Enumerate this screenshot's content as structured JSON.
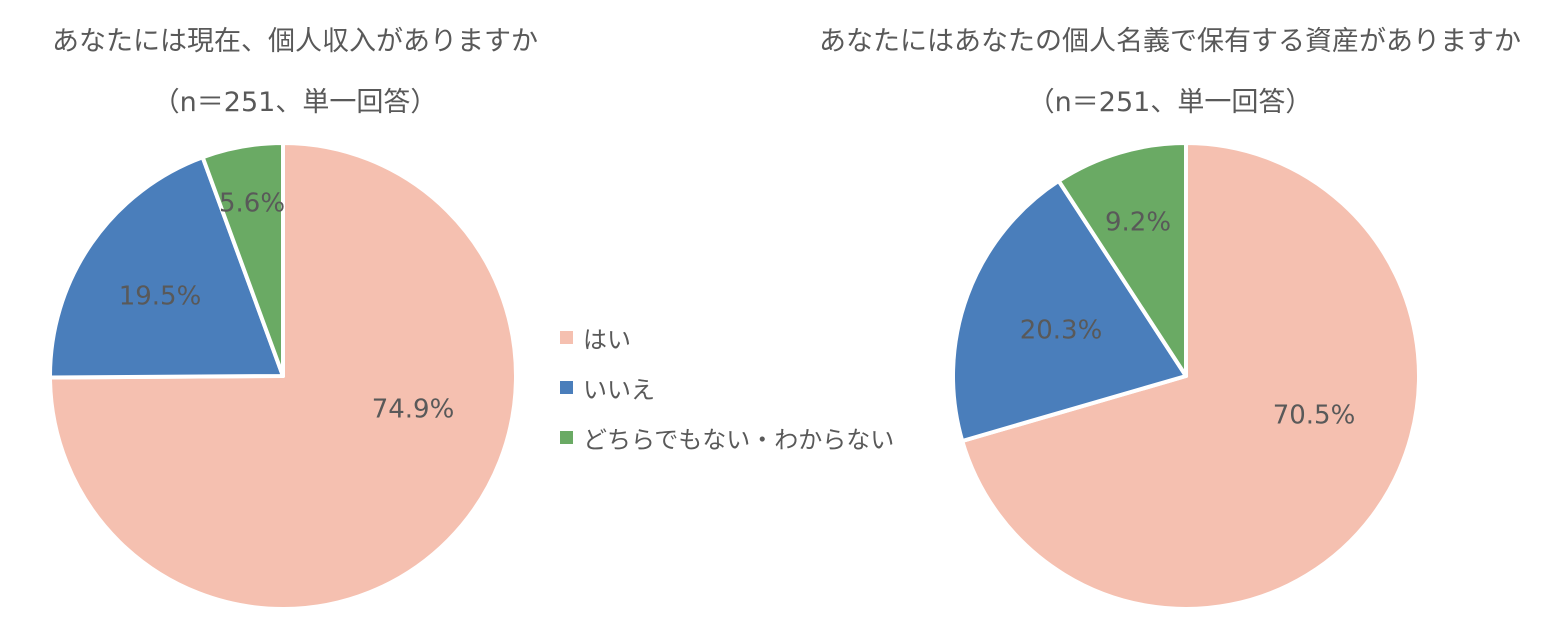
{
  "legend": {
    "items": [
      {
        "label": "はい",
        "color": "#F5C0B0"
      },
      {
        "label": "いいえ",
        "color": "#4A7EBB"
      },
      {
        "label": "どちらでもない・わからない",
        "color": "#6AAA64"
      }
    ]
  },
  "charts": {
    "left": {
      "title": "あなたには現在、個人収入がありますか",
      "subtitle": "（n＝251、単一回答）"
    },
    "right": {
      "title": "あなたにはあなたの個人名義で保有する資産がありますか",
      "subtitle": "（n＝251、単一回答）"
    }
  },
  "chart_data": [
    {
      "type": "pie",
      "title": "あなたには現在、個人収入がありますか（n＝251、単一回答）",
      "categories": [
        "はい",
        "いいえ",
        "どちらでもない・わからない"
      ],
      "values": [
        74.9,
        19.5,
        5.6
      ],
      "labels": [
        "74.9%",
        "19.5%",
        "5.6%"
      ],
      "colors": [
        "#F5C0B0",
        "#4A7EBB",
        "#6AAA64"
      ],
      "start_angle": "12 o'clock, clockwise",
      "legend_position": "center between charts"
    },
    {
      "type": "pie",
      "title": "あなたにはあなたの個人名義で保有する資産がありますか（n＝251、単一回答）",
      "categories": [
        "はい",
        "いいえ",
        "どちらでもない・わからない"
      ],
      "values": [
        70.5,
        20.3,
        9.2
      ],
      "labels": [
        "70.5%",
        "20.3%",
        "9.2%"
      ],
      "colors": [
        "#F5C0B0",
        "#4A7EBB",
        "#6AAA64"
      ],
      "start_angle": "12 o'clock, clockwise",
      "legend_position": "center between charts"
    }
  ]
}
